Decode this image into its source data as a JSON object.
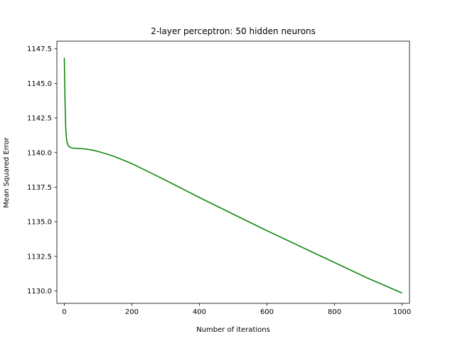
{
  "chart_data": {
    "type": "line",
    "title": "2-layer perceptron: 50 hidden neurons",
    "xlabel": "Number of iterations",
    "ylabel": "Mean Squared Error",
    "xlim": [
      -22,
      1022
    ],
    "ylim": [
      1129.1,
      1148.05
    ],
    "x_ticks": [
      0,
      200,
      400,
      600,
      800,
      1000
    ],
    "x_tick_labels": [
      "0",
      "200",
      "400",
      "600",
      "800",
      "1000"
    ],
    "y_ticks": [
      1130.0,
      1132.5,
      1135.0,
      1137.5,
      1140.0,
      1142.5,
      1145.0,
      1147.5
    ],
    "y_tick_labels": [
      "1130.0",
      "1132.5",
      "1135.0",
      "1137.5",
      "1140.0",
      "1142.5",
      "1145.0",
      "1147.5"
    ],
    "grid": false,
    "legend": "none",
    "series": [
      {
        "color": "#008000",
        "x": [
          0,
          1,
          2,
          3,
          4,
          5,
          6,
          8,
          10,
          12,
          15,
          20,
          25,
          30,
          40,
          50,
          60,
          70,
          80,
          90,
          100,
          125,
          150,
          200,
          250,
          300,
          400,
          500,
          600,
          700,
          800,
          900,
          1000
        ],
        "y": [
          1146.85,
          1145.3,
          1143.9,
          1142.8,
          1142.0,
          1141.5,
          1141.15,
          1140.75,
          1140.6,
          1140.5,
          1140.42,
          1140.35,
          1140.32,
          1140.31,
          1140.3,
          1140.28,
          1140.26,
          1140.23,
          1140.19,
          1140.14,
          1140.08,
          1139.9,
          1139.7,
          1139.2,
          1138.6,
          1138.0,
          1136.75,
          1135.55,
          1134.35,
          1133.2,
          1132.05,
          1130.9,
          1129.85
        ]
      }
    ]
  }
}
